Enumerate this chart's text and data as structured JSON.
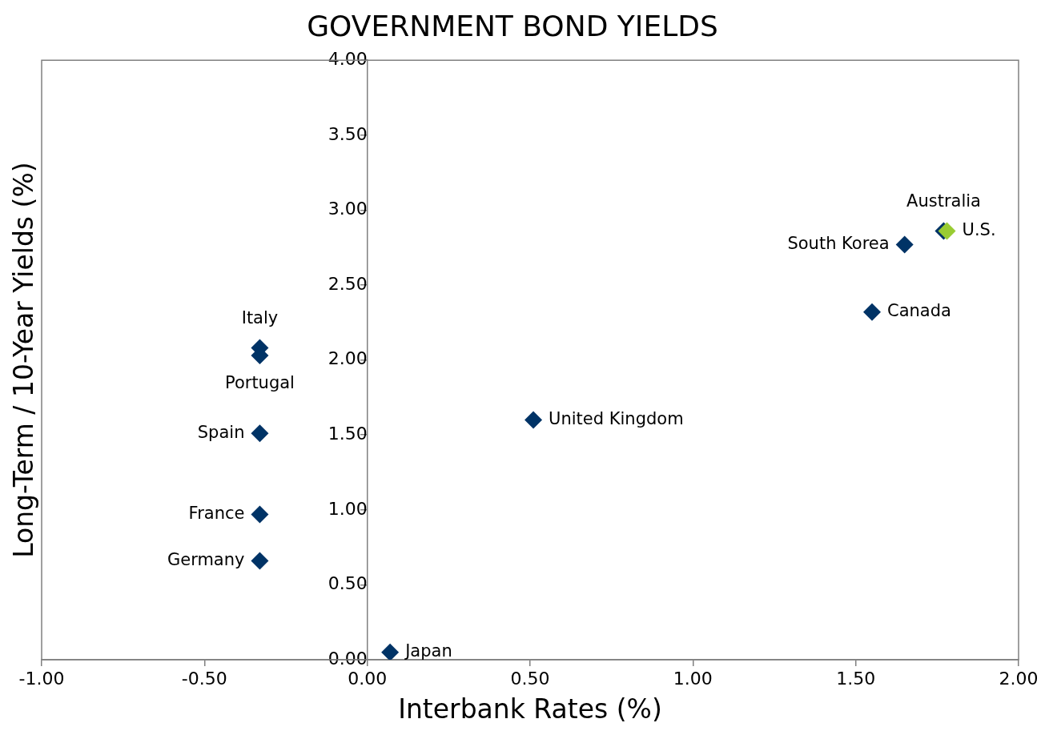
{
  "chart_data": {
    "type": "scatter",
    "title": "GOVERNMENT BOND YIELDS",
    "xlabel": "Interbank Rates (%)",
    "ylabel": "Long-Term / 10-Year Yields (%)",
    "x": [
      0.07,
      0.51,
      1.55,
      1.65,
      1.77,
      1.78,
      -0.33,
      -0.33,
      -0.33,
      -0.33,
      -0.33
    ],
    "values": [
      0.05,
      1.6,
      2.32,
      2.77,
      2.86,
      2.86,
      2.08,
      2.03,
      1.51,
      0.97,
      0.66
    ],
    "colors": [
      "#003366",
      "#003366",
      "#003366",
      "#003366",
      "#003366",
      "#99cc33",
      "#003366",
      "#003366",
      "#003366",
      "#003366",
      "#003366"
    ],
    "marker": "diamond",
    "grid": false,
    "legend": false,
    "xlim": [
      -1,
      2
    ],
    "xticks": [
      {
        "value": -1,
        "label": "-1.00"
      },
      {
        "value": -0.5,
        "label": "-0.50"
      },
      {
        "value": 0,
        "label": "0.00"
      },
      {
        "value": 0.5,
        "label": "0.50"
      },
      {
        "value": 1,
        "label": "1.00"
      },
      {
        "value": 1.5,
        "label": "1.50"
      },
      {
        "value": 2,
        "label": "2.00"
      }
    ],
    "ylim": [
      0,
      4
    ],
    "yticks": [
      {
        "value": 0,
        "label": "0.00"
      },
      {
        "value": 0.5,
        "label": "0.50"
      },
      {
        "value": 1,
        "label": "1.00"
      },
      {
        "value": 1.5,
        "label": "1.50"
      },
      {
        "value": 2,
        "label": "2.00"
      },
      {
        "value": 2.5,
        "label": "2.50"
      },
      {
        "value": 3,
        "label": "3.00"
      },
      {
        "value": 3.5,
        "label": "3.50"
      },
      {
        "value": 4,
        "label": "4.00"
      }
    ],
    "annotations": [
      {
        "text": "Japan",
        "x": 0.07,
        "y": 0.05
      },
      {
        "text": "United Kingdom",
        "x": 0.51,
        "y": 1.6
      },
      {
        "text": "Canada",
        "x": 1.55,
        "y": 2.32
      },
      {
        "text": "South Korea",
        "x": 1.65,
        "y": 2.77
      },
      {
        "text": "Australia",
        "x": 1.77,
        "y": 2.86
      },
      {
        "text": "U.S.",
        "x": 1.78,
        "y": 2.86
      },
      {
        "text": "Italy",
        "x": -0.33,
        "y": 2.08
      },
      {
        "text": "Portugal",
        "x": -0.33,
        "y": 2.03
      },
      {
        "text": "Spain",
        "x": -0.33,
        "y": 1.51
      },
      {
        "text": "France",
        "x": -0.33,
        "y": 0.97
      },
      {
        "text": "Germany",
        "x": -0.33,
        "y": 0.66
      }
    ]
  }
}
